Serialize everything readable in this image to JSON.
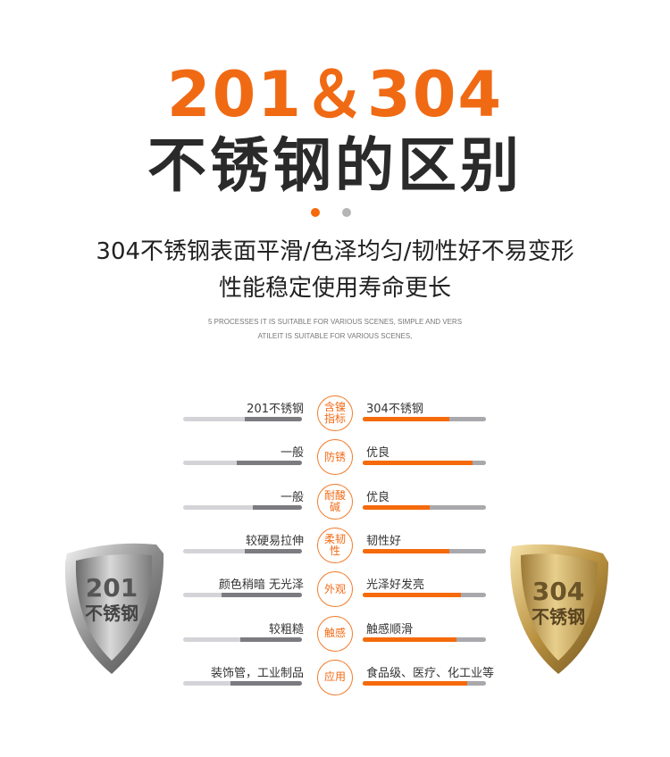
{
  "header": {
    "title_line1": "201＆304",
    "title_line2": "不锈钢的区别",
    "subtitle_line1": "304不锈钢表面平滑/色泽均匀/韧性好不易变形",
    "subtitle_line2": "性能稳定使用寿命更长",
    "english_line1": "5 PROCESSES  IT IS SUITABLE FOR VARIOUS SCENES, SIMPLE AND VERS",
    "english_line2": "ATILEIT IS SUITABLE FOR VARIOUS SCENES,",
    "pagination_active": 0,
    "pagination_count": 2
  },
  "colors": {
    "accent": "#f56a0a",
    "dark": "#2a2a2a",
    "bar_left": "#7b7b80",
    "track": "#d4d4d8"
  },
  "comparison": {
    "rows": [
      {
        "center": "含镍指标",
        "left": "201不锈钢",
        "right": "304不锈钢",
        "left_level": 0.48,
        "right_level": 0.7
      },
      {
        "center": "防锈",
        "left": "一般",
        "right": "优良",
        "left_level": 0.55,
        "right_level": 0.89
      },
      {
        "center": "耐酸碱",
        "left": "一般",
        "right": "优良",
        "left_level": 0.41,
        "right_level": 0.54
      },
      {
        "center": "柔韧性",
        "left": "较硬易拉伸",
        "right": "韧性好",
        "left_level": 0.48,
        "right_level": 0.7
      },
      {
        "center": "外观",
        "left": "颜色稍暗 无光泽",
        "right": "光泽好发亮",
        "left_level": 0.68,
        "right_level": 0.8
      },
      {
        "center": "触感",
        "left": "较粗糙",
        "right": "触感顺滑",
        "left_level": 0.52,
        "right_level": 0.76
      },
      {
        "center": "应用",
        "left": "装饰管，工业制品",
        "right": "食品级、医疗、化工业等",
        "left_level": 0.6,
        "right_level": 0.85
      }
    ]
  },
  "shields": {
    "left": {
      "number": "201",
      "text": "不锈钢"
    },
    "right": {
      "number": "304",
      "text": "不锈钢"
    }
  }
}
